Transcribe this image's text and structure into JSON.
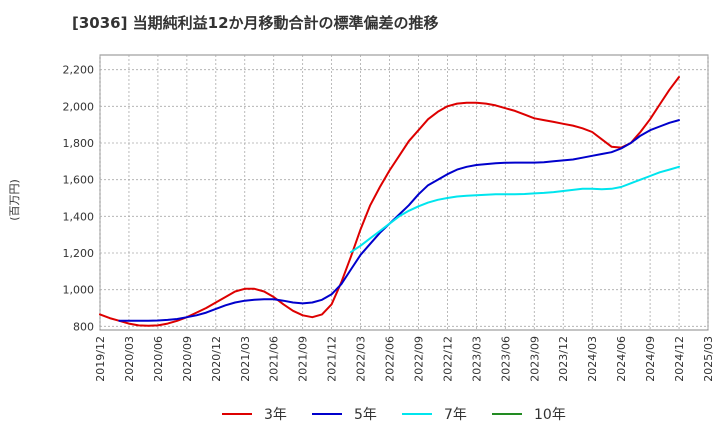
{
  "chart_data": {
    "type": "line",
    "title": "[3036]  当期純利益12か月移動合計の標準偏差の推移",
    "ylabel": "(百万円)",
    "xlabel": "",
    "ylim": [
      780,
      2280
    ],
    "yticks": [
      800,
      1000,
      1200,
      1400,
      1600,
      1800,
      2000,
      2200
    ],
    "ytick_labels": [
      "800",
      "1,000",
      "1,200",
      "1,400",
      "1,600",
      "1,800",
      "2,000",
      "2,200"
    ],
    "x_range": [
      "2019-12",
      "2025-03"
    ],
    "x_tick_labels": [
      "2019/12",
      "2020/03",
      "2020/06",
      "2020/09",
      "2020/12",
      "2021/03",
      "2021/06",
      "2021/09",
      "2021/12",
      "2022/03",
      "2022/06",
      "2022/09",
      "2022/12",
      "2023/03",
      "2023/06",
      "2023/09",
      "2023/12",
      "2024/03",
      "2024/06",
      "2024/09",
      "2024/12",
      "2025/03"
    ],
    "grid": true,
    "legend_position": "bottom",
    "series": [
      {
        "name": "3年",
        "color": "#dd0000",
        "x": [
          "2019-12",
          "2020-01",
          "2020-02",
          "2020-03",
          "2020-04",
          "2020-05",
          "2020-06",
          "2020-07",
          "2020-08",
          "2020-09",
          "2020-10",
          "2020-11",
          "2020-12",
          "2021-01",
          "2021-02",
          "2021-03",
          "2021-04",
          "2021-05",
          "2021-06",
          "2021-07",
          "2021-08",
          "2021-09",
          "2021-10",
          "2021-11",
          "2021-12",
          "2022-01",
          "2022-02",
          "2022-03",
          "2022-04",
          "2022-05",
          "2022-06",
          "2022-07",
          "2022-08",
          "2022-09",
          "2022-10",
          "2022-11",
          "2022-12",
          "2023-01",
          "2023-02",
          "2023-03",
          "2023-04",
          "2023-05",
          "2023-06",
          "2023-07",
          "2023-08",
          "2023-09",
          "2023-10",
          "2023-11",
          "2023-12",
          "2024-01",
          "2024-02",
          "2024-03",
          "2024-04",
          "2024-05",
          "2024-06",
          "2024-07",
          "2024-08",
          "2024-09",
          "2024-10",
          "2024-11",
          "2024-12"
        ],
        "values": [
          865,
          845,
          830,
          815,
          805,
          803,
          805,
          815,
          830,
          850,
          875,
          900,
          930,
          960,
          990,
          1005,
          1005,
          990,
          960,
          920,
          885,
          860,
          850,
          865,
          920,
          1040,
          1180,
          1330,
          1460,
          1560,
          1650,
          1730,
          1810,
          1870,
          1930,
          1970,
          2000,
          2015,
          2020,
          2020,
          2015,
          2005,
          1990,
          1975,
          1955,
          1935,
          1925,
          1915,
          1905,
          1895,
          1880,
          1860,
          1820,
          1780,
          1775,
          1800,
          1860,
          1930,
          2010,
          2090,
          2160
        ]
      },
      {
        "name": "5年",
        "color": "#0000cc",
        "x": [
          "2020-02",
          "2020-03",
          "2020-04",
          "2020-05",
          "2020-06",
          "2020-07",
          "2020-08",
          "2020-09",
          "2020-10",
          "2020-11",
          "2020-12",
          "2021-01",
          "2021-02",
          "2021-03",
          "2021-04",
          "2021-05",
          "2021-06",
          "2021-07",
          "2021-08",
          "2021-09",
          "2021-10",
          "2021-11",
          "2021-12",
          "2022-01",
          "2022-02",
          "2022-03",
          "2022-04",
          "2022-05",
          "2022-06",
          "2022-07",
          "2022-08",
          "2022-09",
          "2022-10",
          "2022-11",
          "2022-12",
          "2023-01",
          "2023-02",
          "2023-03",
          "2023-04",
          "2023-05",
          "2023-06",
          "2023-07",
          "2023-08",
          "2023-09",
          "2023-10",
          "2023-11",
          "2023-12",
          "2024-01",
          "2024-02",
          "2024-03",
          "2024-04",
          "2024-05",
          "2024-06",
          "2024-07",
          "2024-08",
          "2024-09",
          "2024-10",
          "2024-11",
          "2024-12"
        ],
        "values": [
          830,
          830,
          830,
          830,
          832,
          835,
          840,
          850,
          860,
          875,
          895,
          915,
          930,
          940,
          945,
          948,
          948,
          940,
          930,
          925,
          930,
          945,
          975,
          1030,
          1110,
          1190,
          1250,
          1310,
          1360,
          1410,
          1460,
          1520,
          1570,
          1600,
          1630,
          1655,
          1670,
          1680,
          1685,
          1690,
          1692,
          1693,
          1693,
          1693,
          1695,
          1700,
          1705,
          1710,
          1720,
          1730,
          1740,
          1750,
          1770,
          1800,
          1840,
          1870,
          1890,
          1910,
          1925
        ]
      },
      {
        "name": "7年",
        "color": "#00e5ee",
        "x": [
          "2022-02",
          "2022-03",
          "2022-04",
          "2022-05",
          "2022-06",
          "2022-07",
          "2022-08",
          "2022-09",
          "2022-10",
          "2022-11",
          "2022-12",
          "2023-01",
          "2023-02",
          "2023-03",
          "2023-04",
          "2023-05",
          "2023-06",
          "2023-07",
          "2023-08",
          "2023-09",
          "2023-10",
          "2023-11",
          "2023-12",
          "2024-01",
          "2024-02",
          "2024-03",
          "2024-04",
          "2024-05",
          "2024-06",
          "2024-07",
          "2024-08",
          "2024-09",
          "2024-10",
          "2024-11",
          "2024-12"
        ],
        "values": [
          1205,
          1240,
          1280,
          1320,
          1360,
          1400,
          1430,
          1455,
          1475,
          1490,
          1500,
          1508,
          1512,
          1515,
          1518,
          1520,
          1520,
          1520,
          1522,
          1525,
          1528,
          1532,
          1538,
          1544,
          1550,
          1550,
          1548,
          1550,
          1560,
          1580,
          1600,
          1620,
          1640,
          1655,
          1670
        ]
      },
      {
        "name": "10年",
        "color": "#228B22",
        "x": [],
        "values": []
      }
    ]
  }
}
